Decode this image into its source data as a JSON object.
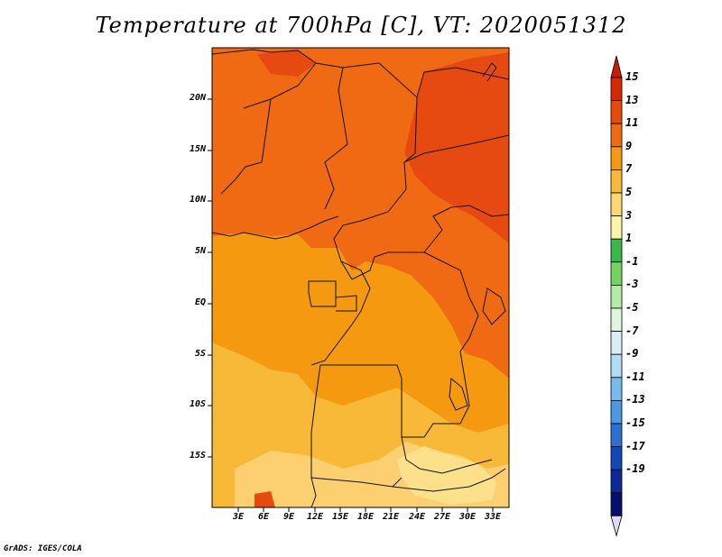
{
  "title": "Temperature at 700hPa [C], VT: 2020051312",
  "footer": "GrADS: IGES/COLA",
  "map": {
    "variable": "Temperature at 700hPa",
    "units": "C",
    "valid_time": "2020051312",
    "lat_labels": [
      "20N",
      "15N",
      "10N",
      "5N",
      "EQ",
      "5S",
      "10S",
      "15S"
    ],
    "lon_labels": [
      "3E",
      "6E",
      "9E",
      "12E",
      "15E",
      "18E",
      "21E",
      "24E",
      "27E",
      "30E",
      "33E"
    ]
  },
  "colorbar": {
    "labels": [
      "15",
      "13",
      "11",
      "9",
      "7",
      "5",
      "3",
      "1",
      "-1",
      "-3",
      "-5",
      "-7",
      "-9",
      "-11",
      "-13",
      "-15",
      "-17",
      "-19"
    ],
    "colors": [
      "#d82800",
      "#e84a0a",
      "#ef6b12",
      "#f59a10",
      "#f8b838",
      "#fcd870",
      "#fcf4a8",
      "#3cb848",
      "#74d460",
      "#b4eca4",
      "#e0f6dc",
      "#daeefa",
      "#b0dcf4",
      "#78baec",
      "#4c98e2",
      "#2b70d2",
      "#1546b8",
      "#0c2a96",
      "#05106e"
    ],
    "top_arrow_color": "#c81e00",
    "bottom_arrow_color": "#dcdcf8"
  },
  "fill_colors": {
    "hot": "#e64a10",
    "warm": "#f06a14",
    "mid": "#f59a10",
    "cool": "#f8b838",
    "cooler": "#fcd070",
    "coolest": "#fde08a"
  }
}
